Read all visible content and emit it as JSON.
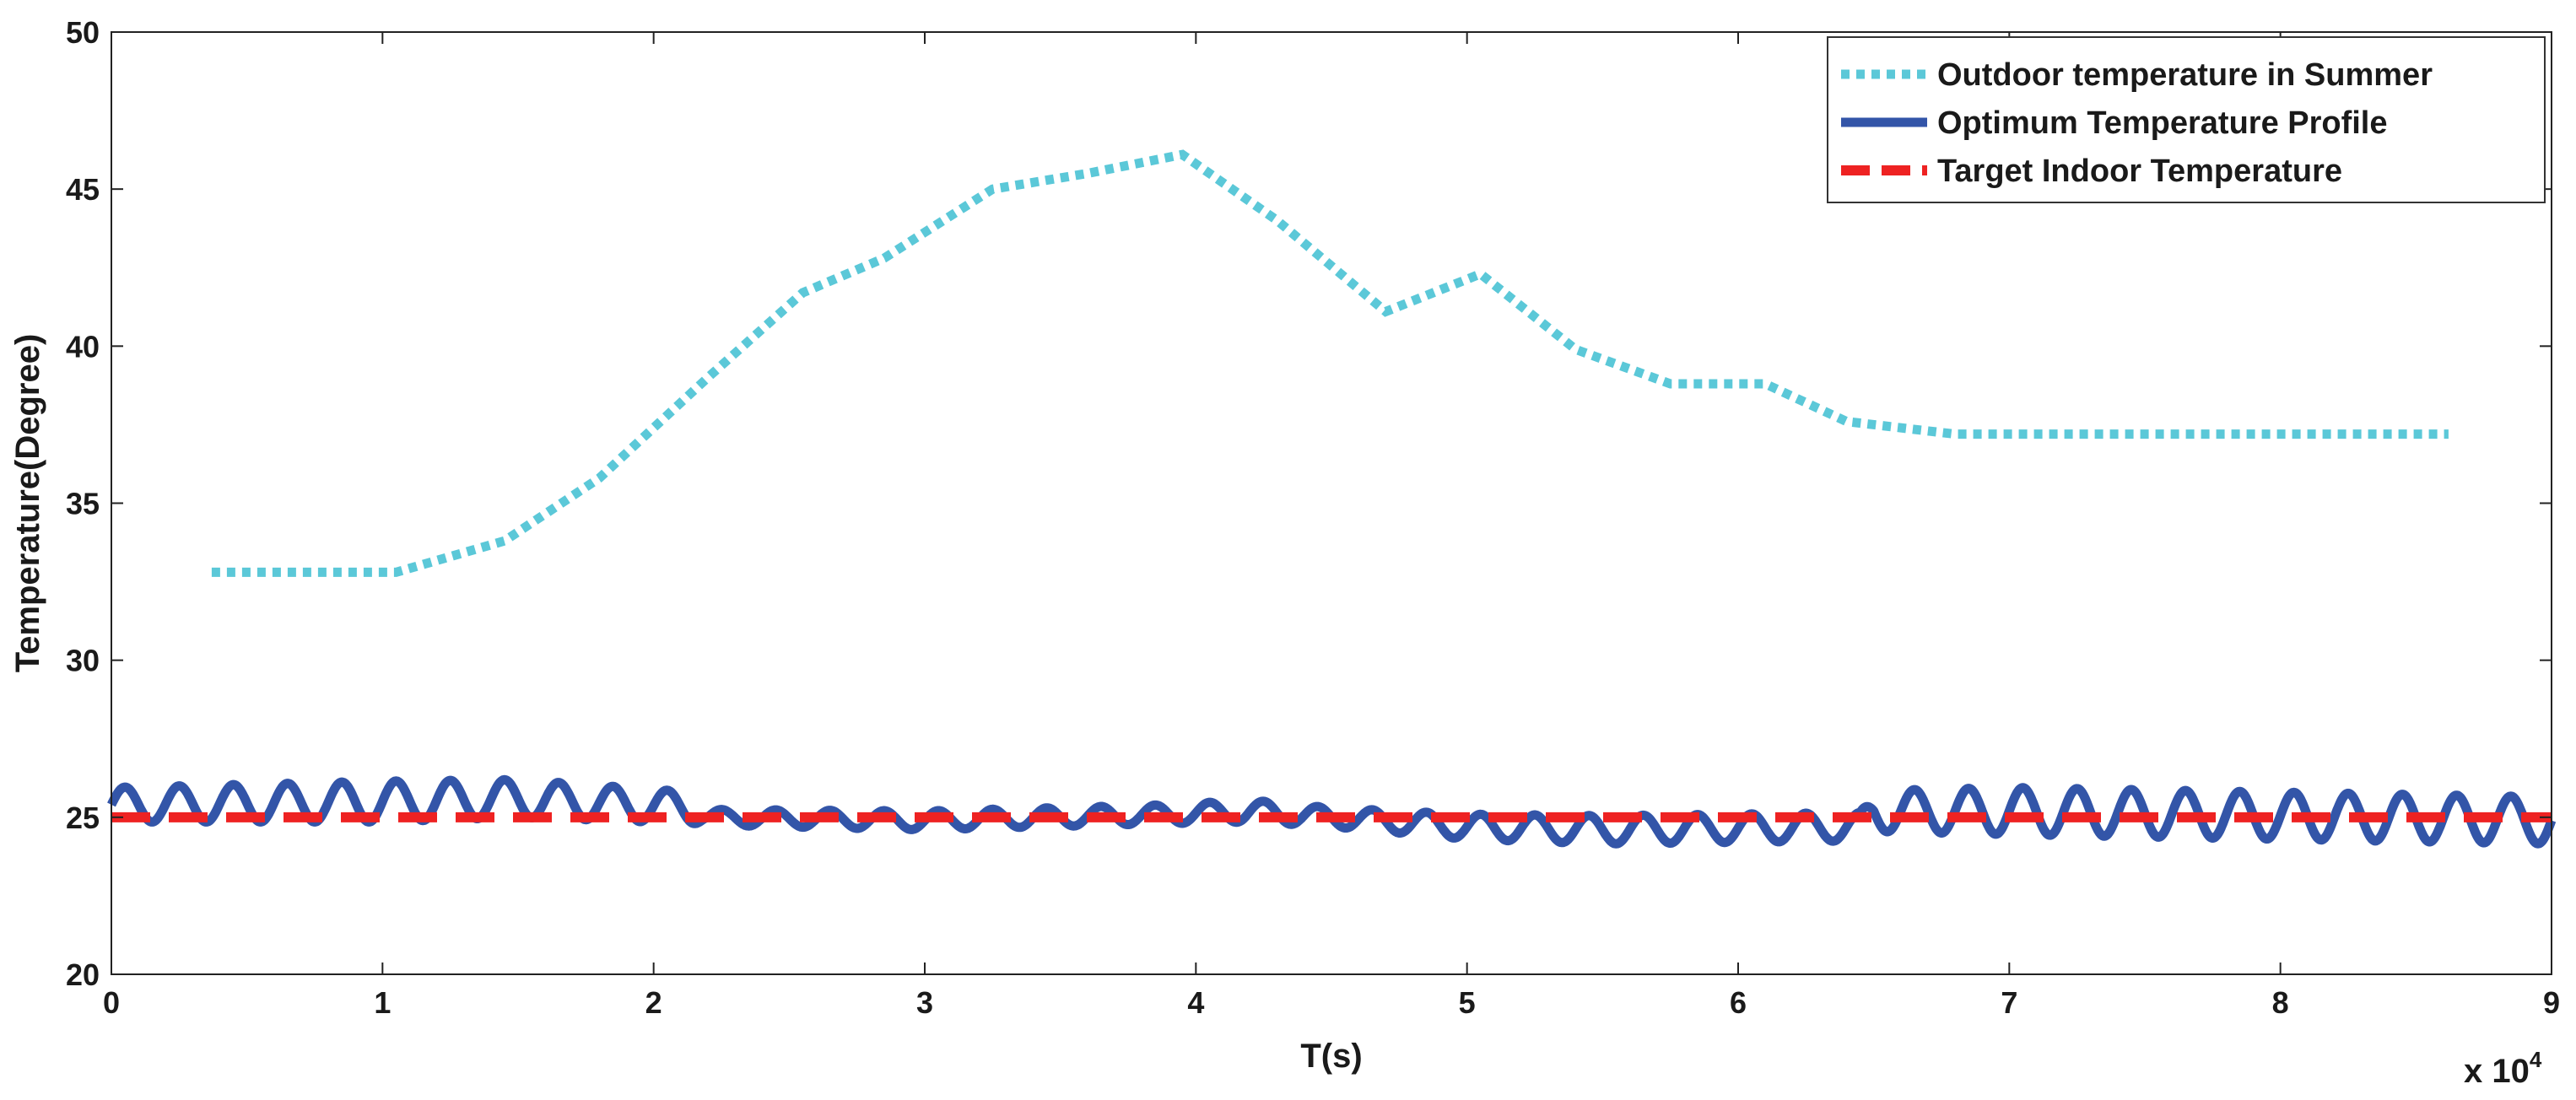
{
  "chart_data": {
    "type": "line",
    "title": "",
    "xlabel": "T(s)",
    "ylabel": "Temperature(Degree)",
    "x_multiplier_label": "x 10",
    "x_multiplier_exponent": "4",
    "xlim": [
      0,
      9
    ],
    "ylim": [
      20,
      50
    ],
    "x_ticks": [
      0,
      1,
      2,
      3,
      4,
      5,
      6,
      7,
      8,
      9
    ],
    "x_tick_labels": [
      "0",
      "1",
      "2",
      "3",
      "4",
      "5",
      "6",
      "7",
      "8",
      "9"
    ],
    "y_ticks": [
      20,
      25,
      30,
      35,
      40,
      45,
      50
    ],
    "y_tick_labels": [
      "20",
      "25",
      "30",
      "35",
      "40",
      "45",
      "50"
    ],
    "grid": false,
    "legend_position": "top-right",
    "series": [
      {
        "name": "Outdoor temperature in Summer",
        "style": "dotted",
        "color": "#5bc8d8",
        "x": [
          0.37,
          1.05,
          1.45,
          1.8,
          2.2,
          2.55,
          2.85,
          3.25,
          3.6,
          3.95,
          4.3,
          4.7,
          5.05,
          5.4,
          5.75,
          6.1,
          6.4,
          6.8,
          7.2,
          8.0,
          8.62
        ],
        "y": [
          32.8,
          32.8,
          33.8,
          35.8,
          39.0,
          41.7,
          42.8,
          45.0,
          45.5,
          46.1,
          44.0,
          41.1,
          42.3,
          39.9,
          38.8,
          38.8,
          37.6,
          37.2,
          37.2,
          37.2,
          37.2
        ]
      },
      {
        "name": "Optimum Temperature Profile",
        "style": "solid",
        "color": "#3355a8",
        "oscillation_period": 0.2,
        "x": [
          0,
          1,
          1.5,
          2.15,
          2.2,
          3.0,
          3.9,
          4.2,
          4.5,
          5.0,
          5.5,
          6.45,
          6.5,
          7.0,
          9.0
        ],
        "center": [
          25.4,
          25.5,
          25.6,
          25.3,
          25.0,
          24.9,
          25.1,
          25.2,
          25.0,
          24.7,
          24.6,
          24.7,
          25.2,
          25.2,
          24.9
        ],
        "amplitude": [
          0.55,
          0.65,
          0.6,
          0.5,
          0.25,
          0.3,
          0.3,
          0.35,
          0.3,
          0.4,
          0.45,
          0.45,
          0.65,
          0.75,
          0.75
        ]
      },
      {
        "name": "Target Indoor Temperature",
        "style": "dashed",
        "color": "#ee2222",
        "x": [
          0,
          9
        ],
        "y": [
          25,
          25
        ]
      }
    ]
  }
}
